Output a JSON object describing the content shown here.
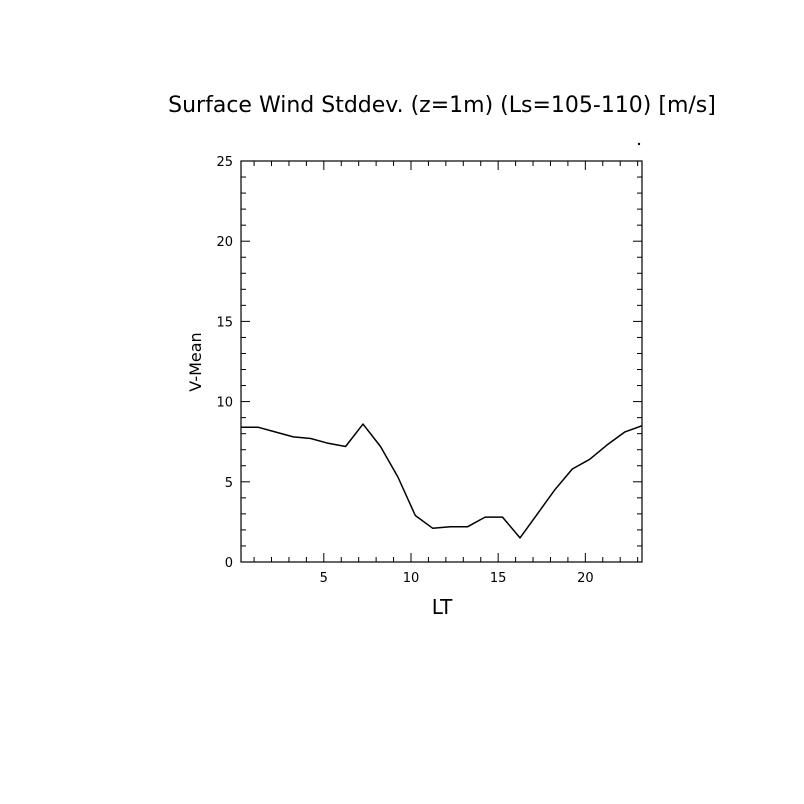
{
  "chart_data": {
    "type": "line",
    "title": "Surface Wind Stddev. (z=1m) (Ls=105-110) [m/s]",
    "xlabel": "LT",
    "ylabel": "V-Mean",
    "xlim": [
      0.25,
      23.25
    ],
    "ylim": [
      0,
      25
    ],
    "xticks": [
      5,
      10,
      15,
      20
    ],
    "yticks": [
      0,
      5,
      10,
      15,
      20,
      25
    ],
    "grid": false,
    "series": [
      {
        "x": [
          0.25,
          1.25,
          2.25,
          3.25,
          4.25,
          5.25,
          6.25,
          7.25,
          8.25,
          9.25,
          10.25,
          11.25,
          12.25,
          13.25,
          14.25,
          15.25,
          16.25,
          17.25,
          18.25,
          19.25,
          20.25,
          21.25,
          22.25,
          23.25
        ],
        "values": [
          8.4,
          8.4,
          8.1,
          7.8,
          7.7,
          7.4,
          7.2,
          8.6,
          7.2,
          5.3,
          2.9,
          2.1,
          2.2,
          2.2,
          2.8,
          2.8,
          1.5,
          3.0,
          4.5,
          5.8,
          6.4,
          7.3,
          8.1,
          8.5
        ]
      }
    ]
  }
}
